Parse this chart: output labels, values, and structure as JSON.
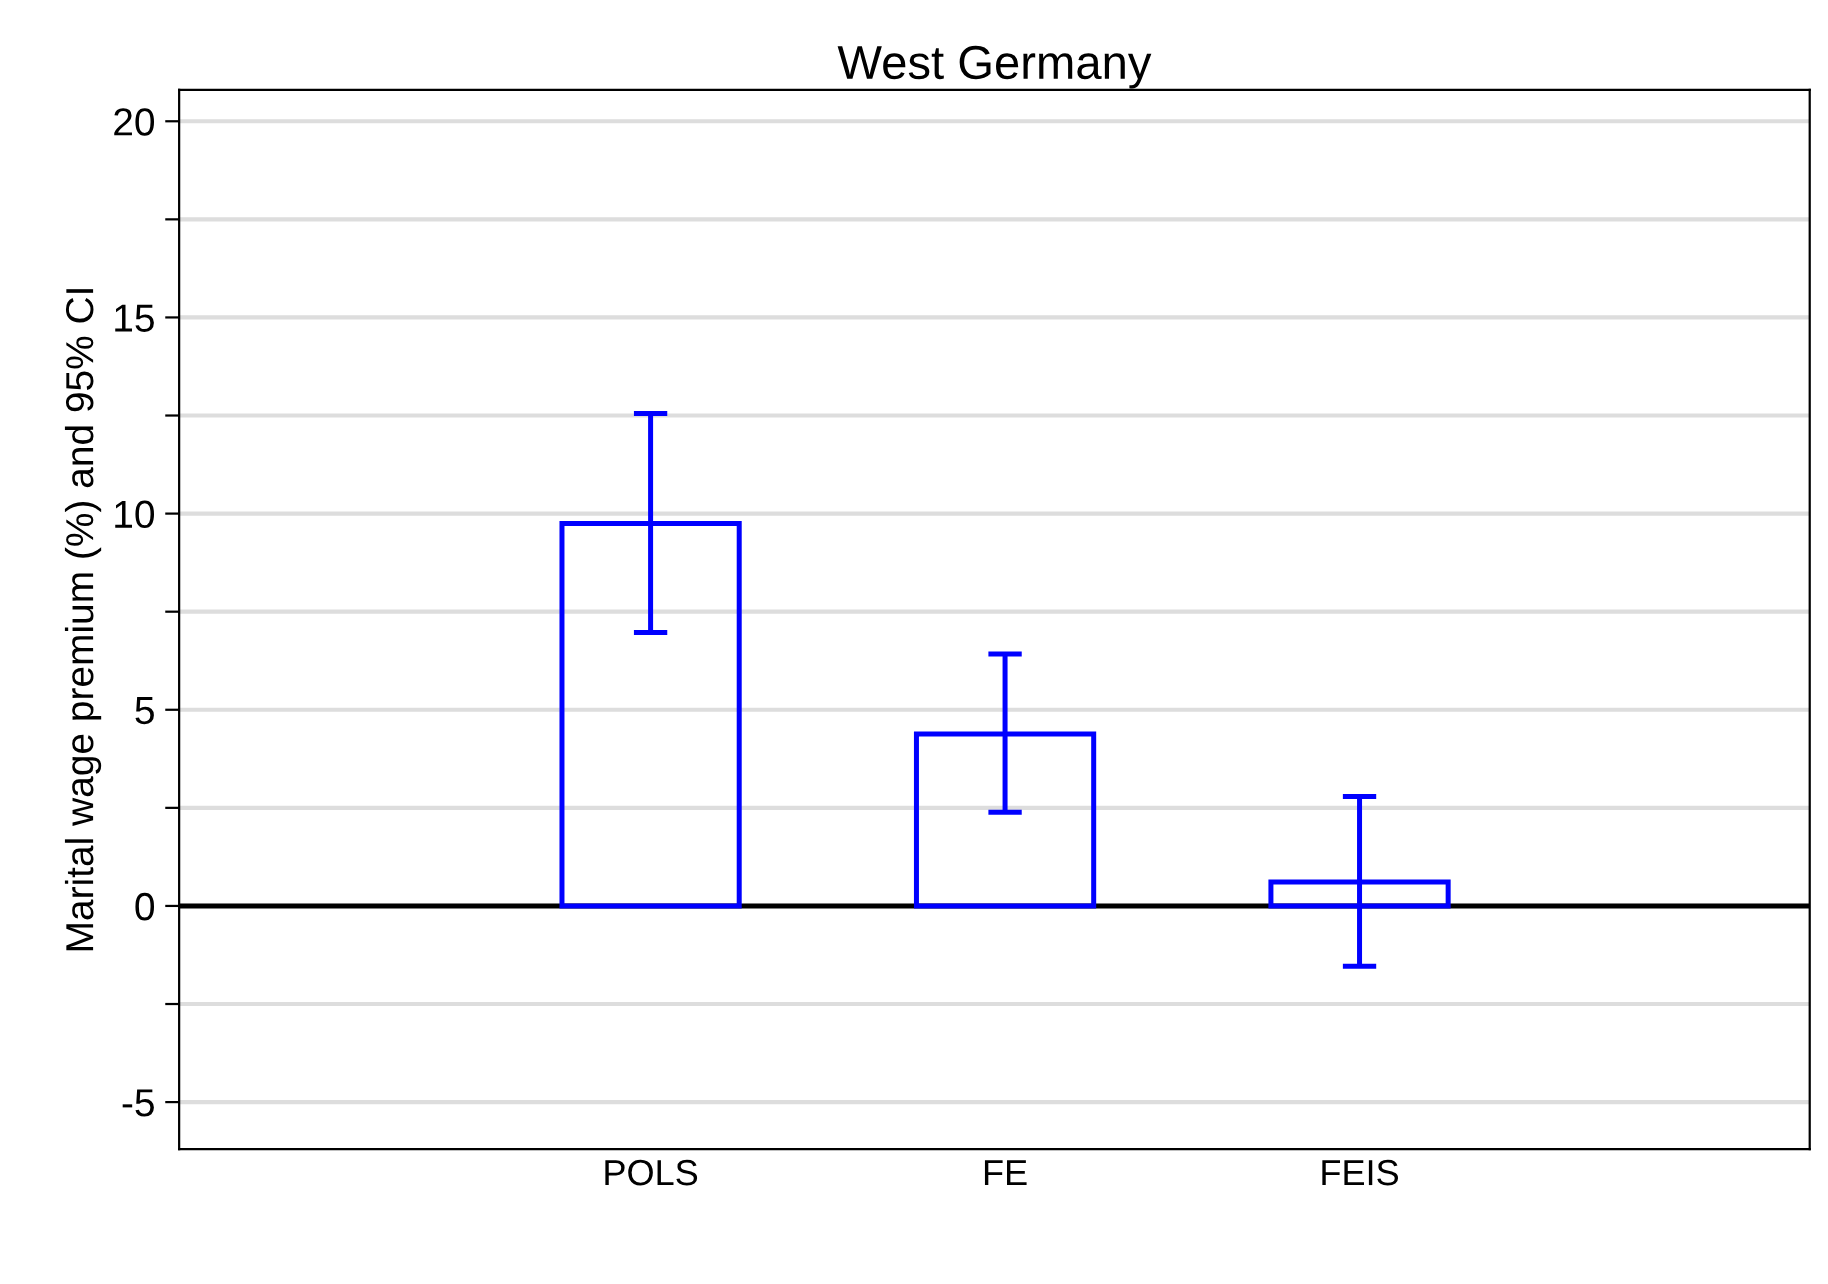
{
  "chart_data": {
    "type": "bar",
    "title": "West Germany",
    "ylabel": "Marital wage premium (%) and 95% CI",
    "categories": [
      "POLS",
      "FE",
      "FEIS"
    ],
    "series": [
      {
        "color": "#0000ff",
        "values": [
          9.75,
          4.38,
          0.61
        ],
        "errors": [
          [
            6.97,
            12.55
          ],
          [
            2.39,
            6.42
          ],
          [
            -1.54,
            2.79
          ]
        ]
      }
    ],
    "ylim": [
      -6.2,
      20.8
    ],
    "yticks": [
      -5,
      {
        "value": -2.5,
        "label": null
      },
      0,
      {
        "value": 2.5,
        "label": null
      },
      5,
      {
        "value": 7.5,
        "label": null
      },
      10,
      {
        "value": 12.5,
        "label": null
      },
      15,
      {
        "value": 17.5,
        "label": null
      },
      20
    ],
    "grid": "y",
    "legend": false,
    "ref_lines": [
      {
        "axis": "y",
        "value": 0,
        "color": "#000000"
      }
    ]
  }
}
